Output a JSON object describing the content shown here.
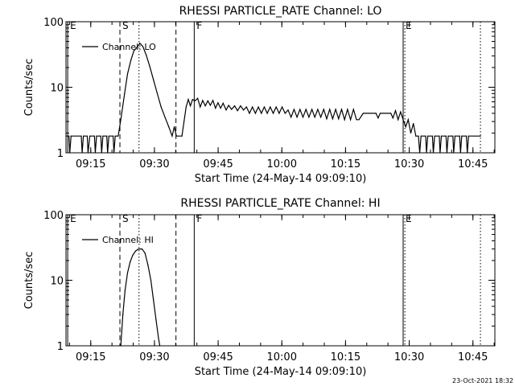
{
  "footer": {
    "timestamp": "23-Oct-2021 18:32"
  },
  "chart_data": [
    {
      "type": "line",
      "title": "RHESSI PARTICLE_RATE Channel: LO",
      "xlabel": "Start Time (24-May-14 09:09:10)",
      "ylabel": "Counts/sec",
      "x_units": "minutes after 09:09:10",
      "xlim": [
        0,
        101
      ],
      "ylim": [
        1,
        100
      ],
      "y_scale": "log",
      "x_ticks": [
        {
          "t": 5.83,
          "label": "09:15"
        },
        {
          "t": 20.83,
          "label": "09:30"
        },
        {
          "t": 35.83,
          "label": "09:45"
        },
        {
          "t": 50.83,
          "label": "10:00"
        },
        {
          "t": 65.83,
          "label": "10:15"
        },
        {
          "t": 80.83,
          "label": "10:30"
        },
        {
          "t": 95.83,
          "label": "10:45"
        }
      ],
      "y_ticks": [
        {
          "v": 1,
          "label": "1"
        },
        {
          "v": 10,
          "label": "10"
        },
        {
          "v": 100,
          "label": "100"
        }
      ],
      "legend": {
        "label": "Channel: LO",
        "position": "top-left"
      },
      "event_markers": [
        {
          "t": 0.4,
          "label": "E",
          "style": "solid"
        },
        {
          "t": 12.7,
          "label": "S",
          "style": "dashed"
        },
        {
          "t": 17.2,
          "label": "",
          "style": "dotted"
        },
        {
          "t": 25.9,
          "label": "",
          "style": "dashed"
        },
        {
          "t": 30.2,
          "label": "F",
          "style": "solid"
        },
        {
          "t": 79.4,
          "label": "E",
          "style": "solid"
        },
        {
          "t": 79.8,
          "label": "",
          "style": "dotted"
        },
        {
          "t": 97.6,
          "label": "",
          "style": "dotted"
        }
      ],
      "series": [
        {
          "values": [
            [
              0,
              1.8
            ],
            [
              0.7,
              1.8
            ],
            [
              0.9,
              1
            ],
            [
              1.2,
              1.8
            ],
            [
              3.6,
              1.8
            ],
            [
              3.8,
              1
            ],
            [
              4.1,
              1.8
            ],
            [
              5,
              1.8
            ],
            [
              5.2,
              1
            ],
            [
              5.6,
              1.8
            ],
            [
              6.7,
              1.8
            ],
            [
              6.9,
              1
            ],
            [
              7.2,
              1.8
            ],
            [
              8.2,
              1.8
            ],
            [
              8.4,
              1
            ],
            [
              8.7,
              1.8
            ],
            [
              9.6,
              1.8
            ],
            [
              9.8,
              1
            ],
            [
              10.1,
              1.8
            ],
            [
              11.1,
              1.8
            ],
            [
              11.3,
              1
            ],
            [
              11.6,
              1.8
            ],
            [
              12.3,
              1.8
            ],
            [
              13,
              3.5
            ],
            [
              13.8,
              8
            ],
            [
              14.5,
              16
            ],
            [
              15.3,
              26
            ],
            [
              16,
              36
            ],
            [
              16.9,
              42
            ],
            [
              17.4,
              47
            ],
            [
              18.1,
              42
            ],
            [
              18.9,
              31
            ],
            [
              19.7,
              21
            ],
            [
              20.6,
              13
            ],
            [
              21.5,
              8
            ],
            [
              22.4,
              5
            ],
            [
              23.3,
              3.5
            ],
            [
              24.2,
              2.5
            ],
            [
              25,
              1.8
            ],
            [
              25.5,
              2.5
            ],
            [
              26,
              1.8
            ],
            [
              27.3,
              1.8
            ],
            [
              27.8,
              3
            ],
            [
              28.3,
              5
            ],
            [
              28.8,
              6.5
            ],
            [
              29.3,
              5.2
            ],
            [
              29.8,
              6.5
            ],
            [
              30.4,
              6.2
            ],
            [
              31,
              6.8
            ],
            [
              31.6,
              5
            ],
            [
              32.2,
              6.3
            ],
            [
              32.8,
              5.2
            ],
            [
              33.4,
              6.2
            ],
            [
              34,
              5.3
            ],
            [
              34.6,
              6.3
            ],
            [
              35.2,
              4.8
            ],
            [
              35.8,
              5.8
            ],
            [
              36.4,
              4.8
            ],
            [
              37,
              5.7
            ],
            [
              37.7,
              4.5
            ],
            [
              38.3,
              5.3
            ],
            [
              39,
              4.6
            ],
            [
              39.7,
              5.2
            ],
            [
              40.4,
              4.4
            ],
            [
              41.1,
              5.2
            ],
            [
              41.8,
              4.5
            ],
            [
              42.5,
              5
            ],
            [
              43.2,
              4
            ],
            [
              43.9,
              5
            ],
            [
              44.6,
              4
            ],
            [
              45.3,
              5
            ],
            [
              46,
              4
            ],
            [
              46.7,
              5
            ],
            [
              47.4,
              4
            ],
            [
              48.1,
              5
            ],
            [
              48.8,
              4
            ],
            [
              49.5,
              5
            ],
            [
              50.2,
              4
            ],
            [
              50.9,
              5
            ],
            [
              51.6,
              4
            ],
            [
              52.3,
              4.5
            ],
            [
              53,
              3.5
            ],
            [
              53.7,
              4.6
            ],
            [
              54.4,
              3.5
            ],
            [
              55.1,
              4.6
            ],
            [
              55.8,
              3.5
            ],
            [
              56.5,
              4.6
            ],
            [
              57.2,
              3.5
            ],
            [
              57.9,
              4.6
            ],
            [
              58.6,
              3.5
            ],
            [
              59.3,
              4.6
            ],
            [
              60,
              3.5
            ],
            [
              60.7,
              4.6
            ],
            [
              61.4,
              3.3
            ],
            [
              62.1,
              4.6
            ],
            [
              62.8,
              3.3
            ],
            [
              63.5,
              4.6
            ],
            [
              64.2,
              3.3
            ],
            [
              64.9,
              4.6
            ],
            [
              65.6,
              3.2
            ],
            [
              66.3,
              4.6
            ],
            [
              67,
              3.2
            ],
            [
              67.7,
              4.6
            ],
            [
              68.4,
              3.2
            ],
            [
              69,
              3.2
            ],
            [
              70,
              4
            ],
            [
              73,
              4
            ],
            [
              73.5,
              3.4
            ],
            [
              74,
              4
            ],
            [
              76.5,
              4
            ],
            [
              77,
              3.4
            ],
            [
              77.6,
              4.4
            ],
            [
              78.2,
              3.2
            ],
            [
              78.8,
              4.2
            ],
            [
              79.4,
              3.2
            ],
            [
              80,
              2.5
            ],
            [
              80.6,
              3.2
            ],
            [
              81.2,
              2
            ],
            [
              81.8,
              2.8
            ],
            [
              82.4,
              1.8
            ],
            [
              83,
              1.8
            ],
            [
              83.3,
              1
            ],
            [
              83.6,
              1.8
            ],
            [
              84.7,
              1.8
            ],
            [
              84.9,
              1
            ],
            [
              85.2,
              1.8
            ],
            [
              86.3,
              1.8
            ],
            [
              86.5,
              1
            ],
            [
              86.8,
              1.8
            ],
            [
              87.9,
              1.8
            ],
            [
              88.1,
              1
            ],
            [
              88.4,
              1.8
            ],
            [
              89.5,
              1.8
            ],
            [
              89.7,
              1
            ],
            [
              90,
              1.8
            ],
            [
              91.1,
              1.8
            ],
            [
              91.3,
              1
            ],
            [
              91.6,
              1.8
            ],
            [
              92.7,
              1.8
            ],
            [
              92.9,
              1
            ],
            [
              93.2,
              1.8
            ],
            [
              94.3,
              1.8
            ],
            [
              94.5,
              1
            ],
            [
              94.8,
              1.8
            ],
            [
              97.6,
              1.8
            ]
          ]
        }
      ]
    },
    {
      "type": "line",
      "title": "RHESSI PARTICLE_RATE Channel: HI",
      "xlabel": "Start Time (24-May-14 09:09:10)",
      "ylabel": "Counts/sec",
      "x_units": "minutes after 09:09:10",
      "xlim": [
        0,
        101
      ],
      "ylim": [
        1,
        100
      ],
      "y_scale": "log",
      "x_ticks": [
        {
          "t": 5.83,
          "label": "09:15"
        },
        {
          "t": 20.83,
          "label": "09:30"
        },
        {
          "t": 35.83,
          "label": "09:45"
        },
        {
          "t": 50.83,
          "label": "10:00"
        },
        {
          "t": 65.83,
          "label": "10:15"
        },
        {
          "t": 80.83,
          "label": "10:30"
        },
        {
          "t": 95.83,
          "label": "10:45"
        }
      ],
      "y_ticks": [
        {
          "v": 1,
          "label": "1"
        },
        {
          "v": 10,
          "label": "10"
        },
        {
          "v": 100,
          "label": "100"
        }
      ],
      "legend": {
        "label": "Channel: HI",
        "position": "top-left"
      },
      "event_markers": [
        {
          "t": 0.4,
          "label": "E",
          "style": "solid"
        },
        {
          "t": 12.7,
          "label": "S",
          "style": "dashed"
        },
        {
          "t": 17.2,
          "label": "",
          "style": "dotted"
        },
        {
          "t": 25.9,
          "label": "",
          "style": "dashed"
        },
        {
          "t": 30.2,
          "label": "F",
          "style": "solid"
        },
        {
          "t": 79.4,
          "label": "E",
          "style": "solid"
        },
        {
          "t": 79.8,
          "label": "",
          "style": "dotted"
        },
        {
          "t": 97.6,
          "label": "",
          "style": "dotted"
        }
      ],
      "series": [
        {
          "values": [
            [
              12.9,
              1
            ],
            [
              13.4,
              3
            ],
            [
              13.9,
              7
            ],
            [
              14.5,
              13
            ],
            [
              15.1,
              19
            ],
            [
              15.7,
              24
            ],
            [
              16.4,
              28
            ],
            [
              17.1,
              30
            ],
            [
              17.9,
              30
            ],
            [
              18.6,
              26
            ],
            [
              19.3,
              17
            ],
            [
              20,
              10
            ],
            [
              20.6,
              5
            ],
            [
              21.2,
              2.5
            ],
            [
              21.8,
              1.3
            ],
            [
              22.1,
              1
            ]
          ]
        }
      ]
    }
  ]
}
